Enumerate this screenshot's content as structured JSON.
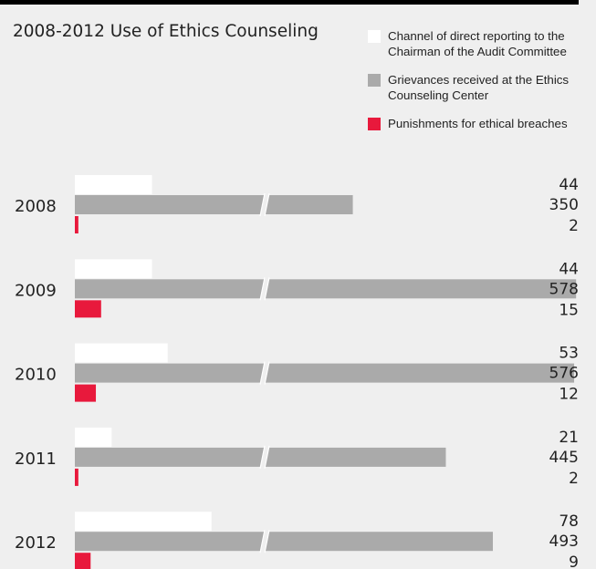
{
  "chart_data": {
    "type": "bar",
    "title": "2008-2012 Use of Ethics Counseling",
    "categories": [
      "2008",
      "2009",
      "2010",
      "2011",
      "2012"
    ],
    "series": [
      {
        "name": "Channel of direct reporting to the Chairman of the Audit Committee",
        "color": "#ffffff",
        "values": [
          44,
          44,
          53,
          21,
          78
        ]
      },
      {
        "name": "Grievances received at the Ethics Counseling Center",
        "color": "#aaaaaa",
        "values": [
          350,
          578,
          576,
          445,
          493
        ]
      },
      {
        "name": "Punishments for ethical breaches",
        "color": "#e8193c",
        "values": [
          2,
          15,
          12,
          2,
          9
        ]
      }
    ],
    "axis_break": true,
    "legend_position": "top-right",
    "grid": false
  }
}
